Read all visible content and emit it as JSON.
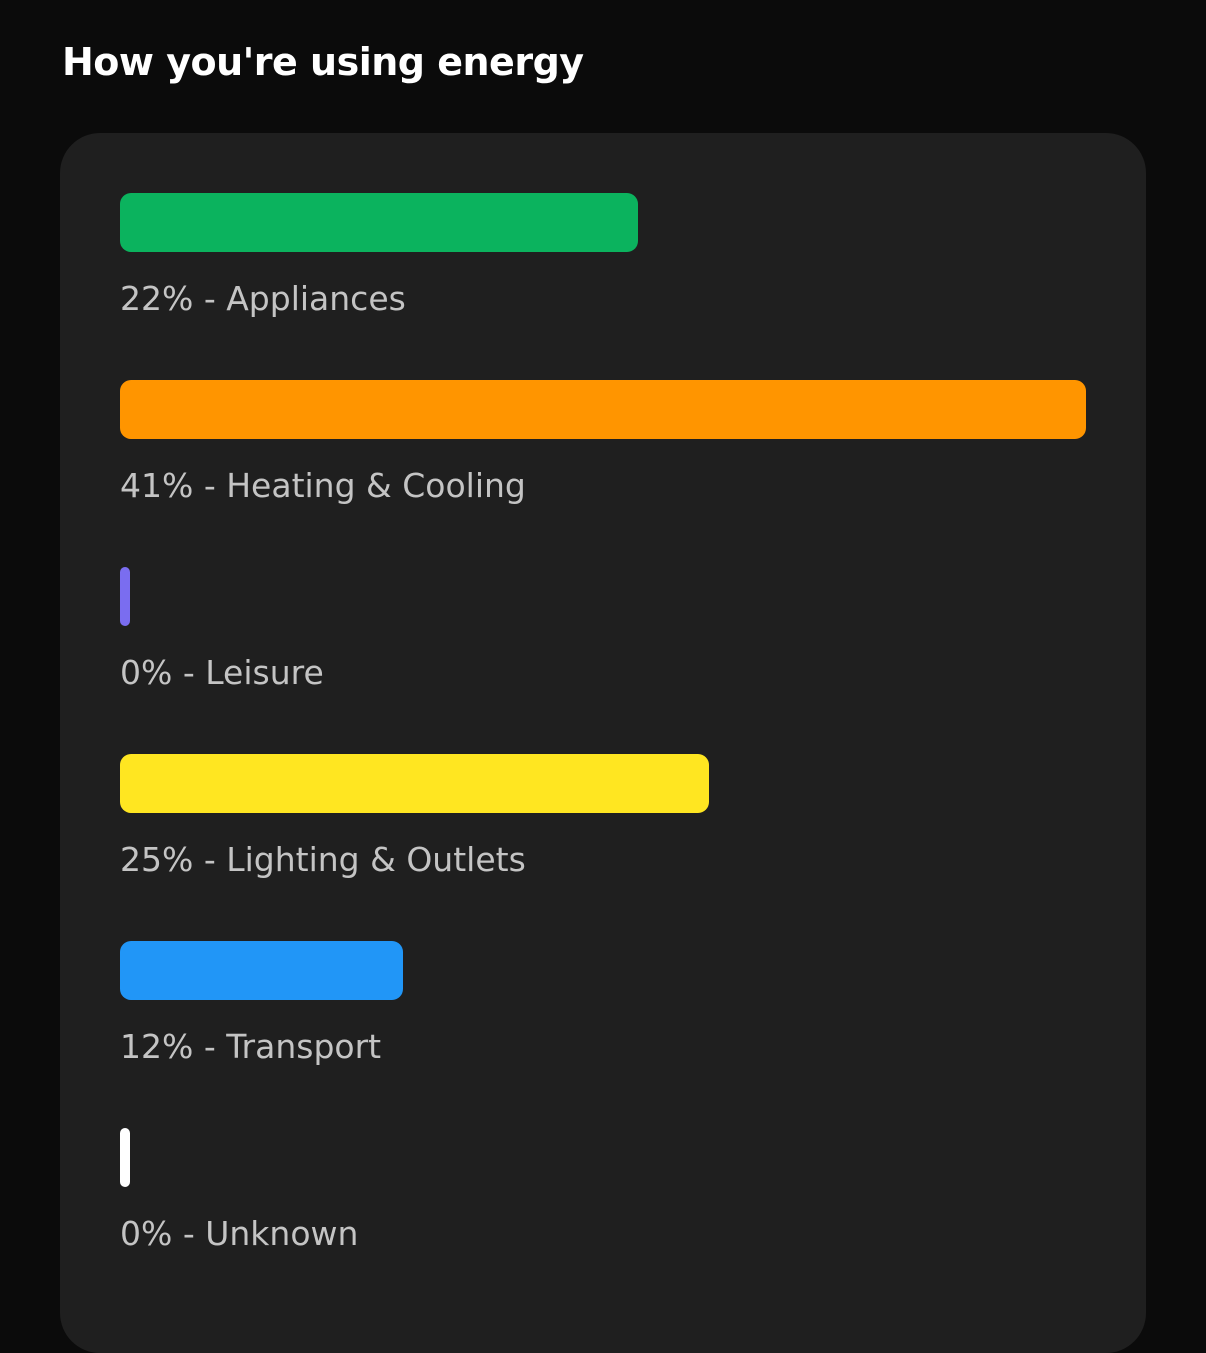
{
  "header": {
    "title": "How you're using energy"
  },
  "chart_data": {
    "type": "bar",
    "orientation": "horizontal",
    "title": "How you're using energy",
    "categories": [
      "Appliances",
      "Heating & Cooling",
      "Leisure",
      "Lighting & Outlets",
      "Transport",
      "Unknown"
    ],
    "values": [
      22,
      41,
      0,
      25,
      12,
      0
    ],
    "unit": "%",
    "colors": [
      "#0bb35e",
      "#ff9500",
      "#7a6df0",
      "#ffe621",
      "#2196f7",
      "#ffffff"
    ],
    "labels": [
      "22% - Appliances",
      "41% - Heating & Cooling",
      "0% - Leisure",
      "25% - Lighting & Outlets",
      "12% - Transport",
      "0% - Unknown"
    ],
    "grid": false,
    "legend": "none"
  }
}
